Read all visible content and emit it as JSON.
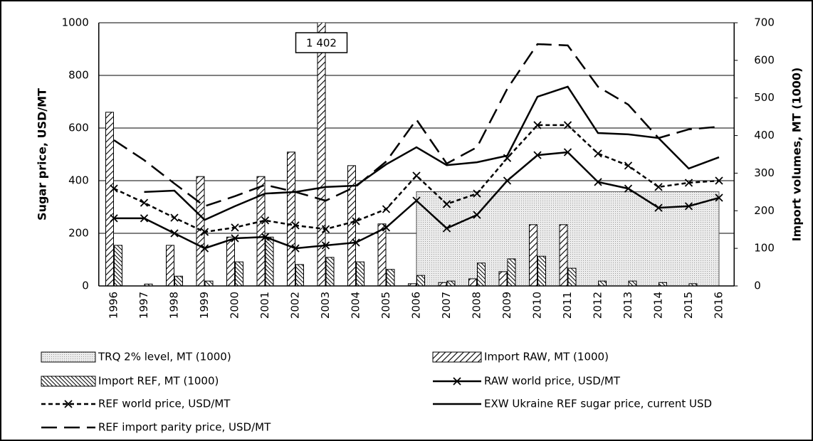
{
  "chart_data": {
    "type": "combo",
    "categories": [
      "1996",
      "1997",
      "1998",
      "1999",
      "2000",
      "2001",
      "2002",
      "2003",
      "2004",
      "2005",
      "2006",
      "2007",
      "2008",
      "2009",
      "2010",
      "2011",
      "2012",
      "2013",
      "2014",
      "2015",
      "2016"
    ],
    "ylabel": "Sugar price, USD/MT",
    "y2label": "Import volumes, MT (1000)",
    "ylim": [
      0,
      1000
    ],
    "yticks": [
      0,
      200,
      400,
      600,
      800,
      1000
    ],
    "y2lim": [
      0,
      700
    ],
    "y2ticks": [
      0,
      100,
      200,
      300,
      400,
      500,
      600,
      700
    ],
    "grid": true,
    "series": [
      {
        "name": "TRQ 2% level, MT (1000)",
        "type": "area",
        "axis": "y2",
        "color": "#d9d9d9",
        "values": [
          null,
          null,
          null,
          null,
          null,
          null,
          null,
          null,
          null,
          null,
          251,
          251,
          251,
          251,
          251,
          251,
          251,
          251,
          251,
          251,
          251
        ]
      },
      {
        "name": "Import RAW, MT (1000)",
        "type": "bar",
        "axis": "y2",
        "color": "#000000",
        "values": [
          462,
          0,
          108,
          291,
          130,
          291,
          356,
          1402,
          320,
          165,
          6,
          9,
          19,
          38,
          163,
          163,
          0,
          0,
          0,
          0,
          0
        ],
        "value_labels": [
          null,
          null,
          null,
          null,
          null,
          null,
          null,
          "1 402",
          null,
          null,
          null,
          null,
          null,
          null,
          null,
          null,
          null,
          null,
          null,
          null,
          null
        ]
      },
      {
        "name": "Import REF, MT (1000)",
        "type": "bar",
        "axis": "y2",
        "color": "#000000",
        "values": [
          108,
          5,
          26,
          13,
          64,
          130,
          57,
          76,
          64,
          44,
          28,
          13,
          61,
          72,
          79,
          47,
          13,
          13,
          9,
          6,
          0
        ]
      },
      {
        "name": "RAW world price, USD/MT",
        "type": "line",
        "color": "#000000",
        "marker": "x",
        "values": [
          257,
          257,
          200,
          143,
          181,
          186,
          143,
          154,
          165,
          222,
          324,
          219,
          270,
          400,
          497,
          508,
          395,
          370,
          297,
          303,
          335
        ]
      },
      {
        "name": "REF world price, USD/MT",
        "type": "line",
        "color": "#000000",
        "marker": "x",
        "dash": "dashed",
        "values": [
          370,
          316,
          259,
          205,
          222,
          249,
          230,
          216,
          246,
          292,
          419,
          311,
          351,
          486,
          611,
          611,
          503,
          457,
          376,
          392,
          400
        ]
      },
      {
        "name": "EXW Ukraine REF sugar price, current USD",
        "type": "line",
        "color": "#000000",
        "values": [
          null,
          357,
          362,
          251,
          303,
          351,
          357,
          376,
          381,
          462,
          527,
          459,
          470,
          495,
          719,
          757,
          581,
          576,
          562,
          446,
          489
        ]
      },
      {
        "name": "REF import parity price, USD/MT",
        "type": "line",
        "color": "#000000",
        "dash": "long-dash",
        "values": [
          554,
          478,
          389,
          303,
          341,
          384,
          357,
          324,
          378,
          473,
          632,
          465,
          527,
          749,
          919,
          914,
          757,
          689,
          562,
          595,
          605
        ]
      }
    ]
  }
}
